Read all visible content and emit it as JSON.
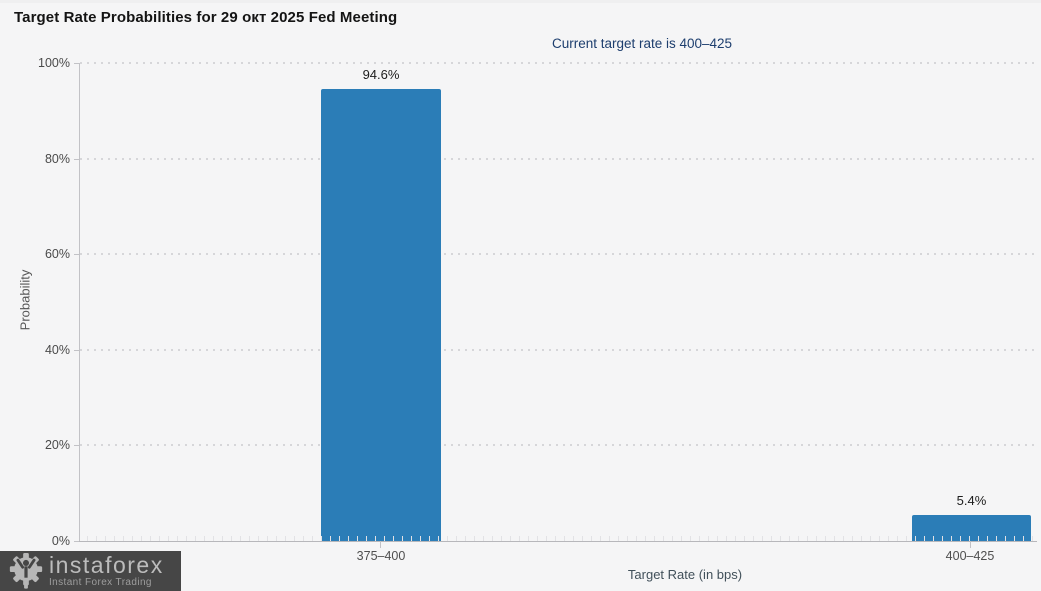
{
  "header": {
    "title": "Target Rate Probabilities for 29 окт 2025 Fed Meeting",
    "subtitle": "Current target rate is 400–425"
  },
  "chart_data": {
    "type": "bar",
    "title": "Target Rate Probabilities for 29 окт 2025 Fed Meeting",
    "subtitle": "Current target rate is 400–425",
    "categories": [
      "375–400",
      "400–425"
    ],
    "values": [
      94.6,
      5.4
    ],
    "value_labels": [
      "94.6%",
      "5.4%"
    ],
    "xlabel": "Target Rate (in bps)",
    "ylabel": "Probability",
    "yticks": [
      "0%",
      "20%",
      "40%",
      "60%",
      "80%",
      "100%"
    ],
    "ylim": [
      0,
      100
    ],
    "bar_color": "#2b7db7",
    "grid": "horizontal dotted",
    "legend_position": "none"
  },
  "watermark": {
    "brand": "instaforex",
    "tagline": "Instant Forex Trading",
    "icon": "gear-person-icon"
  }
}
